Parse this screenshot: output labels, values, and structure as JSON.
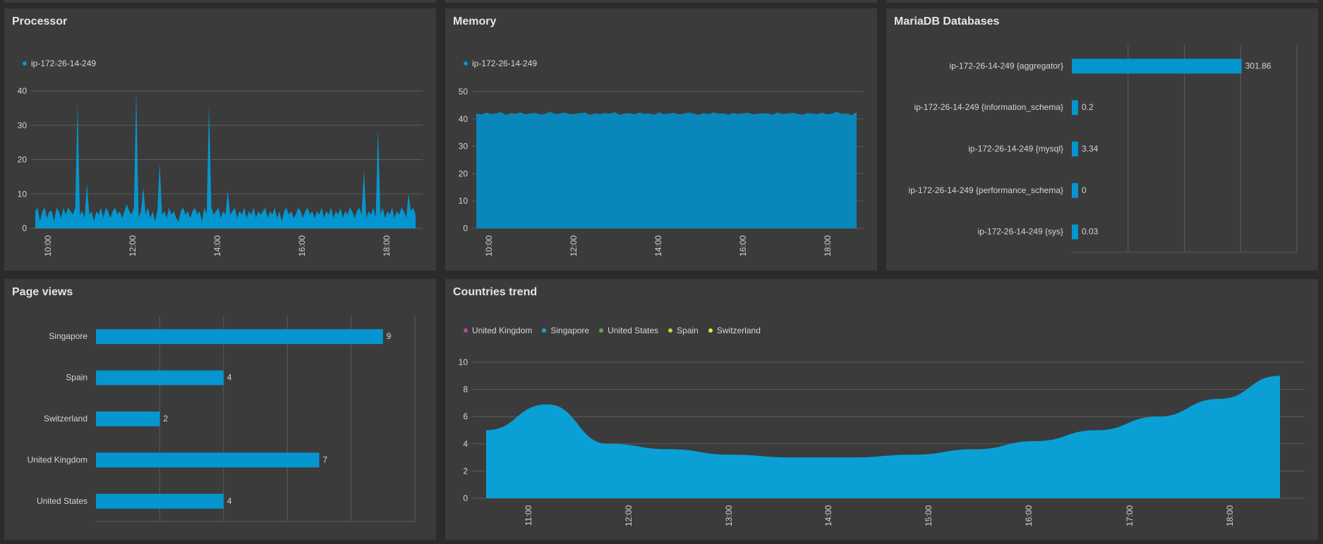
{
  "colors": {
    "accent": "#0596cf",
    "panel": "#3b3b3b",
    "grid": "#5c5c5c",
    "text": "#d4d4d4"
  },
  "processor": {
    "title": "Processor",
    "legend": [
      {
        "label": "ip-172-26-14-249",
        "color": "#0596cf"
      }
    ],
    "chart_data": {
      "type": "area",
      "yticks": [
        "0",
        "10",
        "20",
        "30",
        "40"
      ],
      "ylim": [
        0,
        40
      ],
      "xticks": [
        "10:00",
        "12:00",
        "14:00",
        "16:00",
        "18:00"
      ],
      "series": [
        {
          "name": "ip-172-26-14-249",
          "values": [
            5,
            6,
            2,
            5,
            6,
            3,
            5,
            5,
            2,
            6,
            5,
            3,
            6,
            4,
            6,
            5,
            4,
            6,
            36,
            4,
            5,
            3,
            13,
            4,
            5,
            2,
            5,
            4,
            6,
            3,
            6,
            5,
            3,
            5,
            6,
            4,
            5,
            3,
            5,
            7,
            5,
            4,
            6,
            40,
            3,
            5,
            12,
            4,
            6,
            3,
            5,
            2,
            5,
            19,
            4,
            5,
            3,
            6,
            4,
            5,
            3,
            2,
            5,
            6,
            4,
            5,
            3,
            5,
            6,
            4,
            5,
            2,
            6,
            4,
            36,
            6,
            4,
            5,
            6,
            3,
            5,
            4,
            11,
            4,
            5,
            6,
            3,
            5,
            4,
            6,
            3,
            5,
            4,
            6,
            3,
            5,
            4,
            5,
            6,
            3,
            5,
            4,
            6,
            3,
            5,
            2,
            5,
            6,
            4,
            5,
            3,
            4,
            6,
            5,
            3,
            5,
            6,
            4,
            5,
            3,
            5,
            4,
            6,
            3,
            5,
            4,
            6,
            3,
            5,
            4,
            6,
            3,
            5,
            4,
            6,
            5,
            3,
            5,
            6,
            4,
            17,
            3,
            5,
            4,
            6,
            3,
            29,
            4,
            6,
            3,
            5,
            4,
            6,
            3,
            5,
            4,
            6,
            5,
            3,
            10,
            5,
            6,
            4
          ]
        }
      ]
    }
  },
  "memory": {
    "title": "Memory",
    "legend": [
      {
        "label": "ip-172-26-14-249",
        "color": "#0596cf"
      }
    ],
    "chart_data": {
      "type": "area",
      "yticks": [
        "0",
        "10",
        "20",
        "30",
        "40",
        "50"
      ],
      "ylim": [
        0,
        50
      ],
      "xticks": [
        "10:00",
        "12:00",
        "14:00",
        "16:00",
        "18:00"
      ],
      "series": [
        {
          "name": "ip-172-26-14-249",
          "values": [
            42,
            41.6,
            42.3,
            41.8,
            42,
            42.5,
            41.5,
            42.1,
            41.9,
            42.4,
            41.7,
            42,
            42.2,
            41.6,
            41.9,
            42.6,
            41.8,
            42,
            42.3,
            41.7,
            41.9,
            42.1,
            42.4,
            41.5,
            42,
            41.8,
            42.2,
            41.9,
            42.5,
            41.6,
            42,
            42.1,
            41.7,
            42.3,
            41.9,
            42,
            41.6,
            42.4,
            41.8,
            42,
            42.2,
            41.7,
            41.9,
            42.3,
            42,
            41.5,
            42.1,
            41.8,
            42.4,
            41.9,
            42,
            41.6,
            42.2,
            41.8,
            42,
            42.3,
            41.7,
            41.9,
            42.1,
            42,
            41.6,
            42.4,
            41.8,
            42,
            42.2,
            41.9,
            41.5,
            42.1,
            42,
            41.8,
            42.3,
            41.7,
            41.9,
            42.6,
            41.8,
            42,
            41.4,
            42.5
          ]
        }
      ]
    }
  },
  "mariadb": {
    "title": "MariaDB Databases",
    "chart_data": {
      "type": "bar",
      "categories": [
        "ip-172-26-14-249 {aggregator}",
        "ip-172-26-14-249 {information_schema}",
        "ip-172-26-14-249 {mysql}",
        "ip-172-26-14-249 {performance_schema}",
        "ip-172-26-14-249 {sys}"
      ],
      "values": [
        301.86,
        0.2,
        3.34,
        0,
        0.03
      ],
      "labels": [
        "301.86",
        "0.2",
        "3.34",
        "0",
        "0.03"
      ],
      "xlim": [
        0,
        400
      ]
    }
  },
  "pageviews": {
    "title": "Page views",
    "chart_data": {
      "type": "bar",
      "categories": [
        "Singapore",
        "Spain",
        "Switzerland",
        "United Kingdom",
        "United States"
      ],
      "values": [
        9,
        4,
        2,
        7,
        4
      ],
      "labels": [
        "9",
        "4",
        "2",
        "7",
        "4"
      ],
      "xlim": [
        0,
        10
      ]
    }
  },
  "countries": {
    "title": "Countries trend",
    "legend": [
      {
        "label": "United Kingdom",
        "color": "#b04aa4"
      },
      {
        "label": "Singapore",
        "color": "#1ea1dc"
      },
      {
        "label": "United States",
        "color": "#5fa84a"
      },
      {
        "label": "Spain",
        "color": "#c4d23a"
      },
      {
        "label": "Switzerland",
        "color": "#ece53a"
      }
    ],
    "chart_data": {
      "type": "area",
      "yticks": [
        "0",
        "2",
        "4",
        "6",
        "8",
        "10"
      ],
      "ylim": [
        0,
        10
      ],
      "xticks": [
        "11:00",
        "12:00",
        "13:00",
        "14:00",
        "15:00",
        "16:00",
        "17:00",
        "18:00"
      ],
      "series": [
        {
          "name": "Singapore",
          "values": [
            5,
            6.9,
            4,
            3.6,
            3.2,
            3.0,
            3.0,
            3.2,
            3.6,
            4.2,
            5.0,
            6.0,
            7.3,
            9.0
          ]
        }
      ]
    }
  }
}
